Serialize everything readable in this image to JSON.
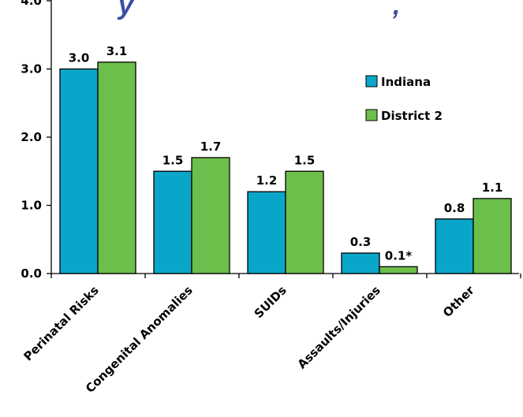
{
  "title_fragment_left": "y",
  "title_fragment_right": ", ",
  "chart_data": {
    "type": "bar",
    "categories": [
      "Perinatal Risks",
      "Congenital Anomalies",
      "SUIDs",
      "Assaults/Injuries",
      "Other"
    ],
    "series": [
      {
        "name": "Indiana",
        "color": "#0aa6c9",
        "values": [
          3.0,
          1.5,
          1.2,
          0.3,
          0.8
        ],
        "labels": [
          "3.0",
          "1.5",
          "1.2",
          "0.3",
          "0.8"
        ]
      },
      {
        "name": "District 2",
        "color": "#6cbf4a",
        "values": [
          3.1,
          1.7,
          1.5,
          0.1,
          1.1
        ],
        "labels": [
          "3.1",
          "1.7",
          "1.5",
          "0.1*",
          "1.1"
        ]
      }
    ],
    "yticks": [
      "0.0",
      "1.0",
      "2.0",
      "3.0",
      "4.0"
    ],
    "ylim": [
      0,
      4
    ],
    "grid": false,
    "legend": "right"
  }
}
